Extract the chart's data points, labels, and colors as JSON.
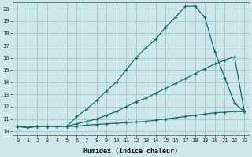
{
  "xlabel": "Humidex (Indice chaleur)",
  "bg_color": "#cce8e8",
  "grid_color": "#aacccc",
  "line_color": "#1a6b6b",
  "xlim": [
    -0.5,
    23.5
  ],
  "ylim": [
    9.7,
    20.5
  ],
  "xticks": [
    0,
    1,
    2,
    3,
    4,
    5,
    6,
    7,
    8,
    9,
    10,
    11,
    12,
    13,
    14,
    15,
    16,
    17,
    18,
    19,
    20,
    21,
    22,
    23
  ],
  "yticks": [
    10,
    11,
    12,
    13,
    14,
    15,
    16,
    17,
    18,
    19,
    20
  ],
  "line1_x": [
    0,
    1,
    2,
    3,
    4,
    5,
    6,
    7,
    8,
    9,
    10,
    11,
    12,
    13,
    14,
    15,
    16,
    17,
    18,
    19,
    20,
    21,
    22,
    23
  ],
  "line1_y": [
    10.4,
    10.3,
    10.4,
    10.4,
    10.4,
    10.4,
    10.4,
    10.5,
    10.55,
    10.6,
    10.65,
    10.7,
    10.75,
    10.8,
    10.9,
    11.0,
    11.1,
    11.2,
    11.3,
    11.4,
    11.5,
    11.55,
    11.6,
    11.6
  ],
  "line2_x": [
    0,
    1,
    2,
    3,
    4,
    5,
    6,
    7,
    8,
    9,
    10,
    11,
    12,
    13,
    14,
    15,
    16,
    17,
    18,
    19,
    20,
    21,
    22,
    23
  ],
  "line2_y": [
    10.4,
    10.3,
    10.4,
    10.4,
    10.4,
    10.4,
    10.6,
    10.8,
    11.0,
    11.3,
    11.6,
    12.0,
    12.4,
    12.7,
    13.1,
    13.5,
    13.9,
    14.3,
    14.7,
    15.1,
    15.5,
    15.8,
    16.1,
    11.6
  ],
  "line3_x": [
    0,
    1,
    2,
    3,
    4,
    5,
    6,
    7,
    8,
    9,
    10,
    11,
    12,
    13,
    14,
    15,
    16,
    17,
    18,
    19,
    20,
    21,
    22,
    23
  ],
  "line3_y": [
    10.4,
    10.3,
    10.4,
    10.4,
    10.4,
    10.4,
    11.2,
    11.8,
    12.5,
    13.3,
    14.0,
    15.0,
    16.0,
    16.8,
    17.5,
    18.5,
    19.3,
    20.2,
    20.2,
    19.3,
    16.5,
    14.4,
    12.3,
    11.6
  ]
}
